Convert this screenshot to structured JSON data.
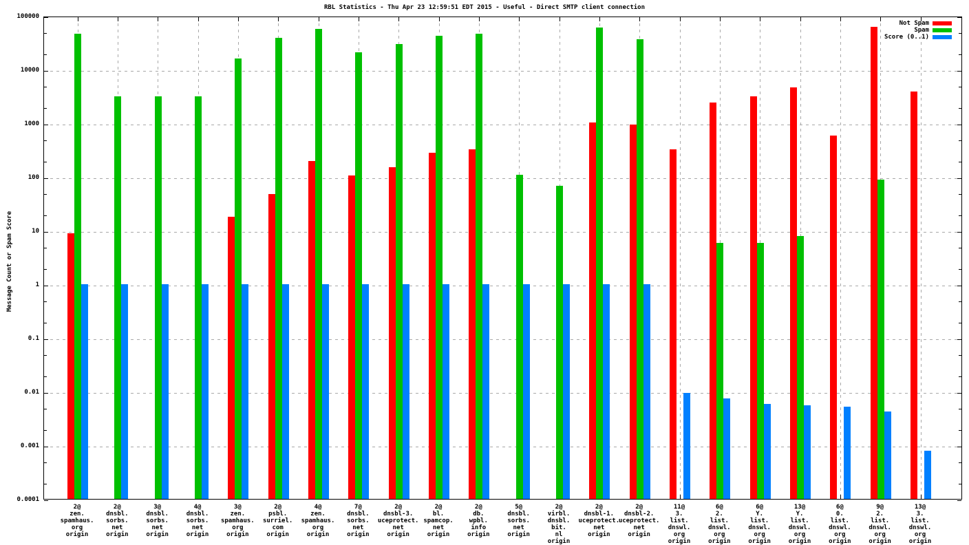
{
  "chart_data": {
    "type": "bar",
    "title": "RBL Statistics - Thu Apr 23 12:59:51 EDT 2015 - Useful - Direct SMTP client connection",
    "ylabel": "Message Count or Spam Score",
    "yscale": "log",
    "ylim": [
      0.0001,
      100000
    ],
    "ytick_labels": [
      "100000",
      "10000",
      "1000",
      "100",
      "10",
      "1",
      "0.1",
      "0.01",
      "0.001",
      "0.0001"
    ],
    "grid": true,
    "legend_position": "top-right-inside",
    "categories": [
      [
        "2@",
        "zen.",
        "spamhaus.",
        "org",
        "origin"
      ],
      [
        "2@",
        "dnsbl.",
        "sorbs.",
        "net",
        "origin"
      ],
      [
        "3@",
        "dnsbl.",
        "sorbs.",
        "net",
        "origin"
      ],
      [
        "4@",
        "dnsbl.",
        "sorbs.",
        "net",
        "origin"
      ],
      [
        "3@",
        "zen.",
        "spamhaus.",
        "org",
        "origin"
      ],
      [
        "2@",
        "psbl.",
        "surriel.",
        "com",
        "origin"
      ],
      [
        "4@",
        "zen.",
        "spamhaus.",
        "org",
        "origin"
      ],
      [
        "7@",
        "dnsbl.",
        "sorbs.",
        "net",
        "origin"
      ],
      [
        "2@",
        "dnsbl-3.",
        "uceprotect.",
        "net",
        "origin"
      ],
      [
        "2@",
        "bl.",
        "spamcop.",
        "net",
        "origin"
      ],
      [
        "2@",
        "db.",
        "wpbl.",
        "info",
        "origin"
      ],
      [
        "5@",
        "dnsbl.",
        "sorbs.",
        "net",
        "origin"
      ],
      [
        "2@",
        "virbl.",
        "dnsbl.",
        "bit.",
        "nl",
        "origin"
      ],
      [
        "2@",
        "dnsbl-1.",
        "uceprotect.",
        "net",
        "origin"
      ],
      [
        "2@",
        "dnsbl-2.",
        "uceprotect.",
        "net",
        "origin"
      ],
      [
        "11@",
        "3.",
        "list.",
        "dnswl.",
        "org",
        "origin"
      ],
      [
        "6@",
        "2.",
        "list.",
        "dnswl.",
        "org",
        "origin"
      ],
      [
        "6@",
        "Y.",
        "list.",
        "dnswl.",
        "org",
        "origin"
      ],
      [
        "13@",
        "Y.",
        "list.",
        "dnswl.",
        "org",
        "origin"
      ],
      [
        "6@",
        "0.",
        "list.",
        "dnswl.",
        "org",
        "origin"
      ],
      [
        "9@",
        "2.",
        "list.",
        "dnswl.",
        "org",
        "origin"
      ],
      [
        "13@",
        "3.",
        "list.",
        "dnswl.",
        "org",
        "origin"
      ]
    ],
    "series": [
      {
        "name": "Not Spam",
        "color": "#ff0000",
        "values": [
          9,
          null,
          null,
          null,
          18,
          48,
          200,
          105,
          150,
          280,
          330,
          null,
          null,
          1030,
          930,
          330,
          2400,
          3200,
          4600,
          590,
          62000,
          3900
        ]
      },
      {
        "name": "Spam",
        "color": "#00c000",
        "values": [
          46000,
          3200,
          3200,
          3200,
          16000,
          39000,
          57000,
          21000,
          29500,
          43000,
          47000,
          108,
          68,
          60000,
          37000,
          null,
          5.8,
          5.8,
          8,
          null,
          90,
          null
        ]
      },
      {
        "name": "Score (0..1)",
        "color": "#0080ff",
        "values": [
          1,
          1,
          1,
          1,
          1,
          1,
          1,
          1,
          1,
          1,
          1,
          1,
          1,
          1,
          1,
          0.0095,
          0.0075,
          0.0058,
          0.0055,
          0.0053,
          0.0043,
          0.0008
        ]
      }
    ]
  },
  "colors": {
    "background": "#ffffff",
    "border": "#000000",
    "grid": "#a8a8a8"
  }
}
